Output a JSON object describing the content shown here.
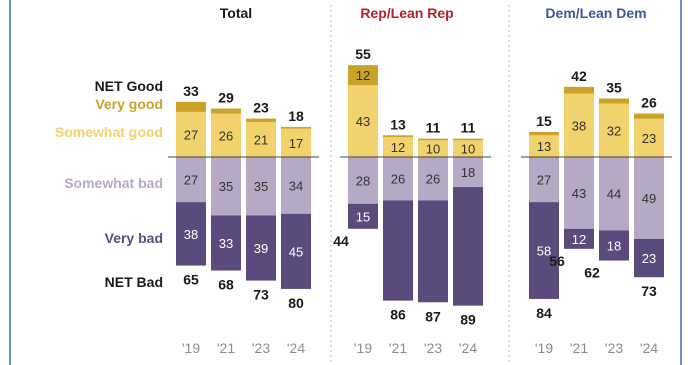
{
  "colors": {
    "very_good": "#c9a227",
    "somewhat_good": "#f1d26d",
    "somewhat_bad": "#b7a8c5",
    "very_bad": "#5d4a7c",
    "rep_title": "#b4202b",
    "dem_title": "#3c5a96",
    "net_label": "#1a1a1a",
    "inbar_light": "#ffffff",
    "inbar_dark": "#333333",
    "axis_tick": "#8c8c8c"
  },
  "row_labels": {
    "net_good": "NET Good",
    "very_good": "Very good",
    "somewhat_good": "Somewhat good",
    "somewhat_bad": "Somewhat bad",
    "very_bad": "Very bad",
    "net_bad": "NET Bad"
  },
  "chart_data": {
    "type": "bar",
    "orientation": "diverging-stacked",
    "categories": [
      "'19",
      "'21",
      "'23",
      "'24"
    ],
    "ylim": [
      -90,
      60
    ],
    "grid": false,
    "panels": [
      {
        "title": "Total",
        "series": [
          {
            "name": "Very good",
            "values": [
              6,
              3,
              2,
              1
            ]
          },
          {
            "name": "Somewhat good",
            "values": [
              27,
              26,
              21,
              17
            ]
          },
          {
            "name": "Somewhat bad",
            "values": [
              27,
              35,
              35,
              34
            ]
          },
          {
            "name": "Very bad",
            "values": [
              38,
              33,
              39,
              45
            ]
          }
        ],
        "net_good": [
          33,
          29,
          23,
          18
        ],
        "net_bad": [
          65,
          68,
          73,
          80
        ]
      },
      {
        "title": "Rep/Lean Rep",
        "series": [
          {
            "name": "Very good",
            "values": [
              12,
              1,
              1,
              1
            ]
          },
          {
            "name": "Somewhat good",
            "values": [
              43,
              12,
              10,
              10
            ]
          },
          {
            "name": "Somewhat bad",
            "values": [
              28,
              26,
              26,
              18
            ]
          },
          {
            "name": "Very bad",
            "values": [
              15,
              60,
              61,
              71
            ]
          }
        ],
        "net_good": [
          55,
          13,
          11,
          11
        ],
        "net_bad": [
          44,
          86,
          87,
          89
        ]
      },
      {
        "title": "Dem/Lean Dem",
        "series": [
          {
            "name": "Very good",
            "values": [
              2,
              4,
              3,
              3
            ]
          },
          {
            "name": "Somewhat good",
            "values": [
              13,
              38,
              32,
              23
            ]
          },
          {
            "name": "Somewhat bad",
            "values": [
              27,
              43,
              44,
              49
            ]
          },
          {
            "name": "Very bad",
            "values": [
              58,
              12,
              18,
              23
            ]
          }
        ],
        "net_good": [
          15,
          42,
          35,
          26
        ],
        "net_bad": [
          84,
          56,
          62,
          73
        ]
      }
    ],
    "labeled_segments": {
      "Very good": [
        [
          false,
          false,
          false,
          false
        ],
        [
          true,
          false,
          false,
          false
        ],
        [
          false,
          false,
          false,
          false
        ]
      ],
      "Somewhat good": [
        [
          true,
          true,
          true,
          true
        ],
        [
          true,
          true,
          true,
          true
        ],
        [
          true,
          true,
          true,
          true
        ]
      ],
      "Somewhat bad": [
        [
          true,
          true,
          true,
          true
        ],
        [
          true,
          true,
          true,
          true
        ],
        [
          true,
          true,
          true,
          true
        ]
      ],
      "Very bad": [
        [
          true,
          true,
          true,
          true
        ],
        [
          true,
          false,
          false,
          false
        ],
        [
          true,
          true,
          true,
          true
        ]
      ]
    },
    "external_bad_values": [
      [
        false,
        false,
        false,
        false
      ],
      [
        true,
        false,
        false,
        false
      ],
      [
        false,
        true,
        true,
        false
      ]
    ]
  }
}
